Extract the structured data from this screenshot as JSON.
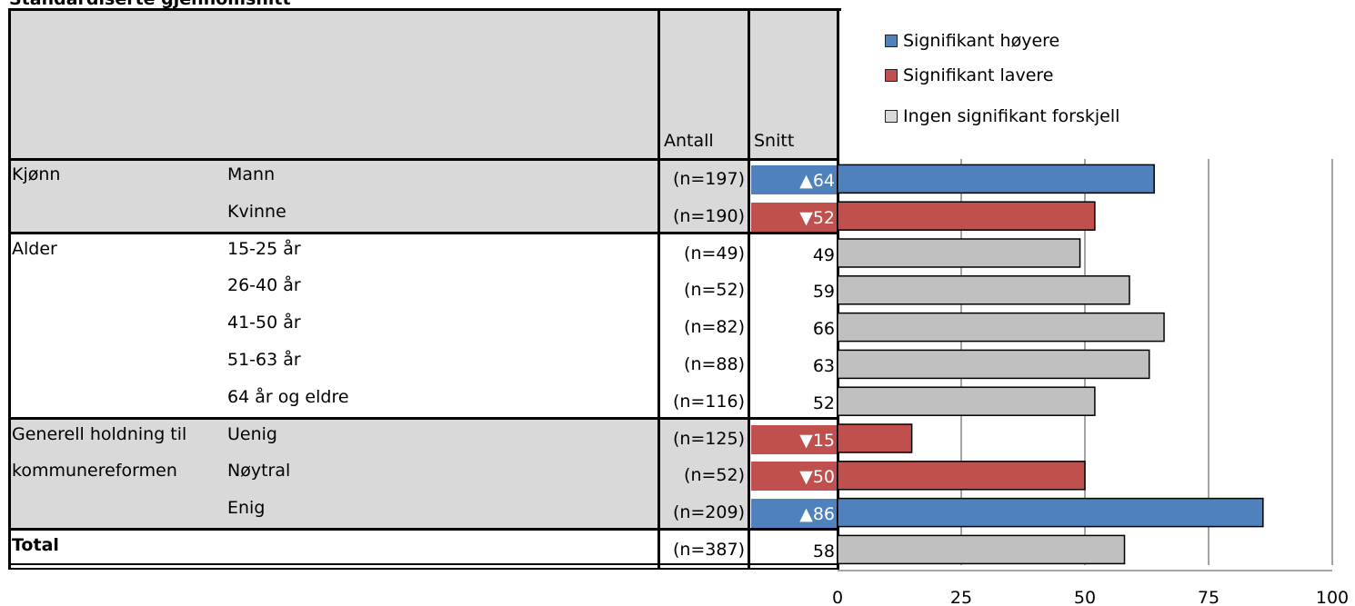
{
  "title": "Standardiserte gjennomsnitt",
  "headers": {
    "antall": "Antall",
    "snitt": "Snitt"
  },
  "legend": [
    {
      "label": "Signifikant høyere",
      "color": "#4f81bd"
    },
    {
      "label": "Signifikant lavere",
      "color": "#c0504d"
    },
    {
      "label": "Ingen signifikant forskjell",
      "color": "#c0c0c0"
    }
  ],
  "rows": [
    {
      "group": "Kjønn",
      "label": "Mann",
      "n": "(n=197)",
      "snitt": "▲64",
      "sig": "higher"
    },
    {
      "group": "",
      "label": "Kvinne",
      "n": "(n=190)",
      "snitt": "▼52",
      "sig": "lower"
    },
    {
      "group": "Alder",
      "label": "15-25 år",
      "n": "(n=49)",
      "snitt": "49",
      "sig": "none"
    },
    {
      "group": "",
      "label": "26-40 år",
      "n": "(n=52)",
      "snitt": "59",
      "sig": "none"
    },
    {
      "group": "",
      "label": "41-50 år",
      "n": "(n=82)",
      "snitt": "66",
      "sig": "none"
    },
    {
      "group": "",
      "label": "51-63 år",
      "n": "(n=88)",
      "snitt": "63",
      "sig": "none"
    },
    {
      "group": "",
      "label": "64 år og eldre",
      "n": "(n=116)",
      "snitt": "52",
      "sig": "none"
    },
    {
      "group": "Generell holdning til",
      "label": "Uenig",
      "n": "(n=125)",
      "snitt": "▼15",
      "sig": "lower"
    },
    {
      "group": "kommunereformen",
      "label": "Nøytral",
      "n": "(n=52)",
      "snitt": "▼50",
      "sig": "lower"
    },
    {
      "group": "",
      "label": "Enig",
      "n": "(n=209)",
      "snitt": "▲86",
      "sig": "higher"
    },
    {
      "group": "Total",
      "label": "",
      "n": "(n=387)",
      "snitt": "58",
      "sig": "none"
    }
  ],
  "chart_data": {
    "type": "bar",
    "orientation": "horizontal",
    "categories": [
      "Mann",
      "Kvinne",
      "15-25 år",
      "26-40 år",
      "41-50 år",
      "51-63 år",
      "64 år og eldre",
      "Uenig",
      "Nøytral",
      "Enig",
      "Total"
    ],
    "values": [
      64,
      52,
      49,
      59,
      66,
      63,
      52,
      15,
      50,
      86,
      58
    ],
    "significance": [
      "higher",
      "lower",
      "none",
      "none",
      "none",
      "none",
      "none",
      "lower",
      "lower",
      "higher",
      "none"
    ],
    "xlim": [
      0,
      100
    ],
    "xticks": [
      "0",
      "25",
      "50",
      "75",
      "100"
    ],
    "grid": true,
    "legend_position": "top",
    "colors": {
      "higher": "#4f81bd",
      "lower": "#c0504d",
      "none": "#c0c0c0"
    }
  }
}
